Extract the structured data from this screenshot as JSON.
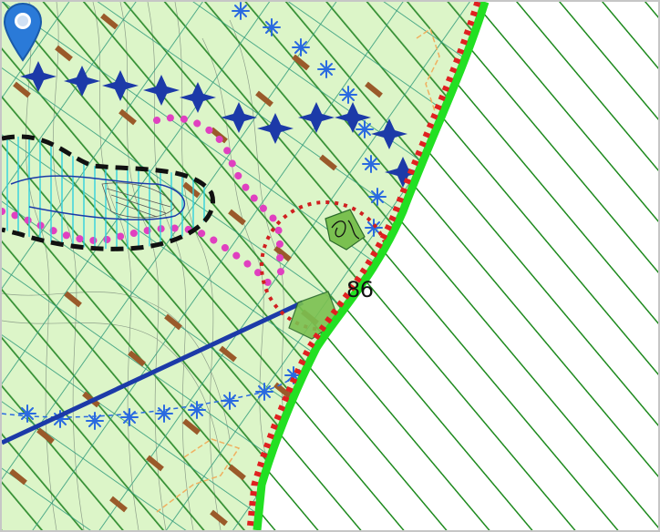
{
  "map": {
    "marker_label": "86",
    "marker_icon": "map-pin-icon",
    "colors": {
      "land_fill": "#dcf5c8",
      "hatch_dark": "#2b8a2b",
      "grid_teal": "#2f9a7a",
      "boundary_bright": "#22e022",
      "boundary_red": "#e02020",
      "magenta_dots": "#e040c0",
      "blue_symbols": "#1c3aa8",
      "asterisk_blue": "#2a6ae0",
      "brown_ticks": "#9a5a2a",
      "contour": "#7a8a7a",
      "marker_blue": "#2a7ad8"
    }
  }
}
